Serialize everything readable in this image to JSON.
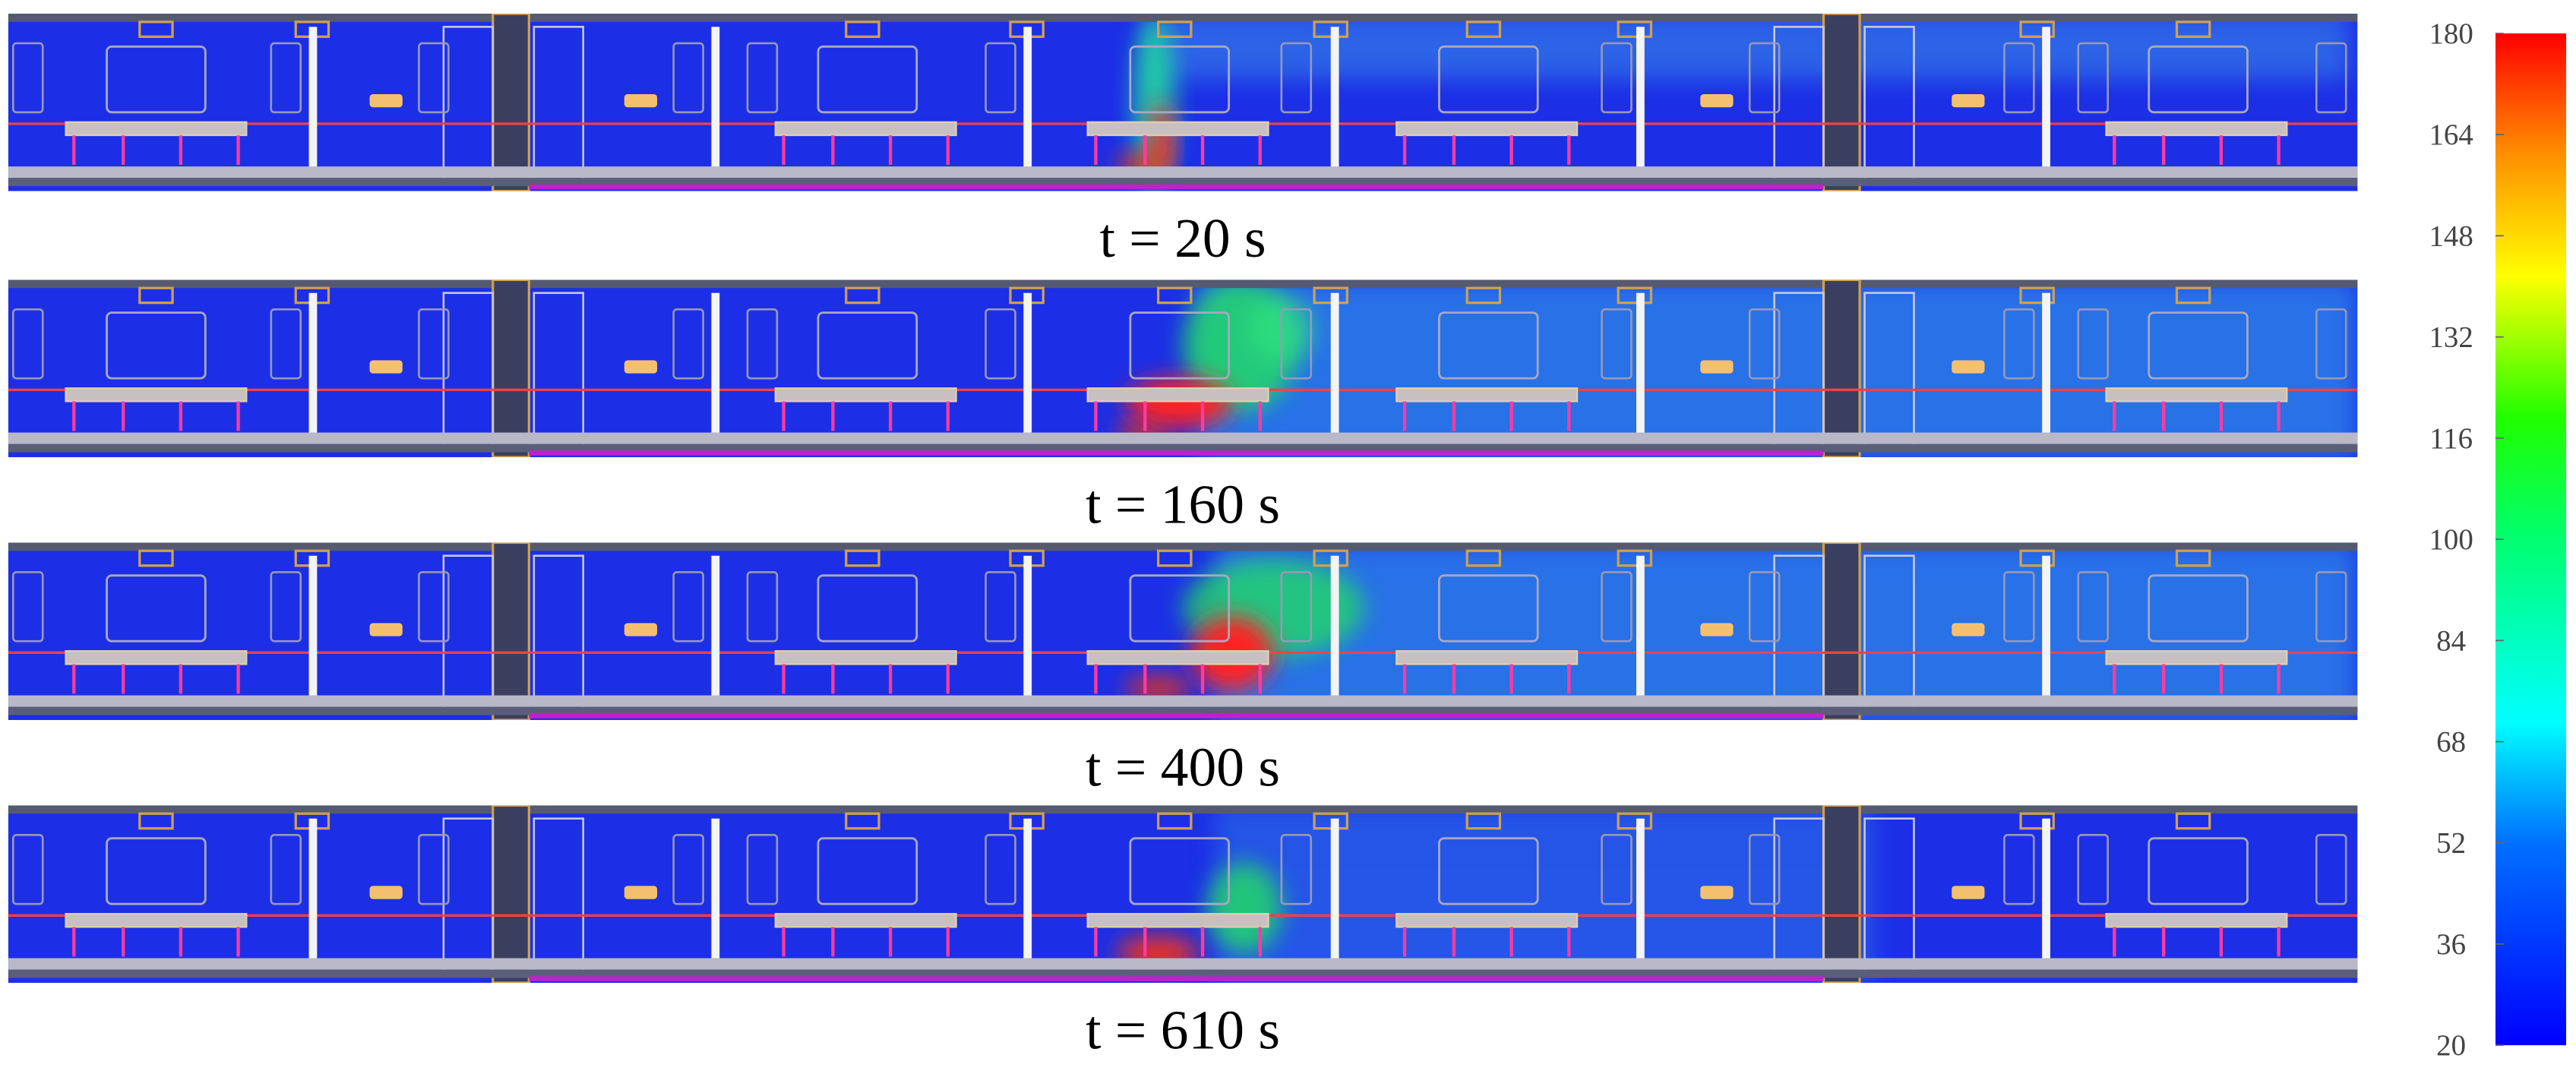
{
  "figure": {
    "panels": [
      {
        "label": "t = 20 s"
      },
      {
        "label": "t = 160 s"
      },
      {
        "label": "t = 400 s"
      },
      {
        "label": "t = 610 s"
      }
    ],
    "colorbar": {
      "range": [
        20,
        180
      ],
      "ticks": [
        20,
        36,
        52,
        68,
        84,
        100,
        116,
        132,
        148,
        164,
        180
      ]
    }
  }
}
